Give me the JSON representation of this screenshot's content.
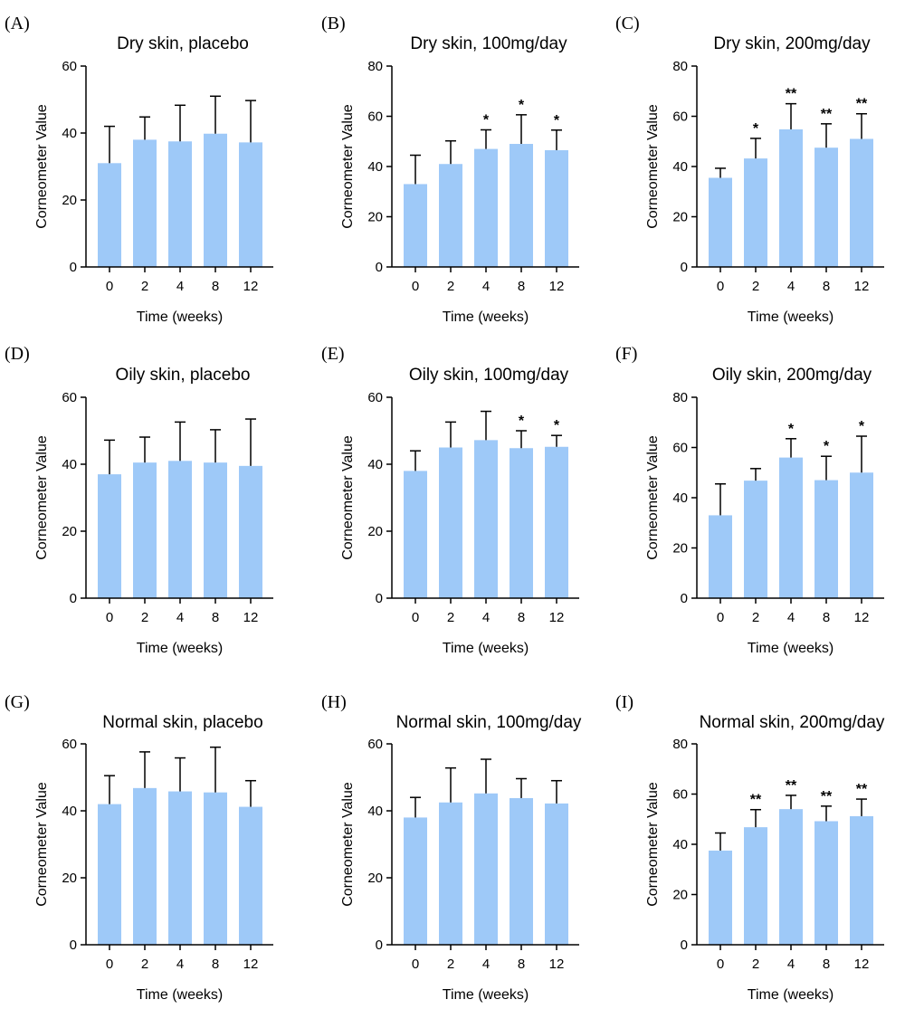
{
  "figure": {
    "bar_color": "#9ec9f8",
    "axis_color": "#000000"
  },
  "chart_data": [
    {
      "letter": "(A)",
      "type": "bar",
      "title": "Dry skin, placebo",
      "xlabel": "Time (weeks)",
      "ylabel": "Corneometer Value",
      "categories": [
        "0",
        "2",
        "4",
        "8",
        "12"
      ],
      "values": [
        31,
        38,
        37.5,
        39.8,
        37.2
      ],
      "errors": [
        11,
        6.8,
        10.8,
        11.2,
        12.5
      ],
      "significance": [
        "",
        "",
        "",
        "",
        ""
      ],
      "ylim": [
        0,
        60
      ],
      "yticks": [
        "0",
        "20",
        "40",
        "60"
      ]
    },
    {
      "letter": "(B)",
      "type": "bar",
      "title": "Dry skin, 100mg/day",
      "xlabel": "Time (weeks)",
      "ylabel": "Corneometer Value",
      "categories": [
        "0",
        "2",
        "4",
        "8",
        "12"
      ],
      "values": [
        33,
        41,
        47,
        49,
        46.5
      ],
      "errors": [
        11.5,
        9.2,
        7.6,
        11.6,
        8
      ],
      "significance": [
        "",
        "",
        "*",
        "*",
        "*"
      ],
      "ylim": [
        0,
        80
      ],
      "yticks": [
        "0",
        "20",
        "40",
        "60",
        "80"
      ]
    },
    {
      "letter": "(C)",
      "type": "bar",
      "title": "Dry skin, 200mg/day",
      "xlabel": "Time (weeks)",
      "ylabel": "Corneometer Value",
      "categories": [
        "0",
        "2",
        "4",
        "8",
        "12"
      ],
      "values": [
        35.5,
        43.2,
        54.8,
        47.5,
        51
      ],
      "errors": [
        3.8,
        8,
        10.2,
        9.5,
        10
      ],
      "significance": [
        "",
        "*",
        "**",
        "**",
        "**"
      ],
      "ylim": [
        0,
        80
      ],
      "yticks": [
        "0",
        "20",
        "40",
        "60",
        "80"
      ]
    },
    {
      "letter": "(D)",
      "type": "bar",
      "title": "Oily skin, placebo",
      "xlabel": "Time (weeks)",
      "ylabel": "Corneometer Value",
      "categories": [
        "0",
        "2",
        "4",
        "8",
        "12"
      ],
      "values": [
        37,
        40.5,
        41,
        40.5,
        39.5
      ],
      "errors": [
        10.2,
        7.6,
        11.6,
        9.8,
        14
      ],
      "significance": [
        "",
        "",
        "",
        "",
        ""
      ],
      "ylim": [
        0,
        60
      ],
      "yticks": [
        "0",
        "20",
        "40",
        "60"
      ]
    },
    {
      "letter": "(E)",
      "type": "bar",
      "title": "Oily skin, 100mg/day",
      "xlabel": "Time (weeks)",
      "ylabel": "Corneometer Value",
      "categories": [
        "0",
        "2",
        "4",
        "8",
        "12"
      ],
      "values": [
        38,
        45,
        47.2,
        44.8,
        45.2
      ],
      "errors": [
        6,
        7.6,
        8.6,
        5.2,
        3.4
      ],
      "significance": [
        "",
        "",
        "",
        "*",
        "*"
      ],
      "ylim": [
        0,
        60
      ],
      "yticks": [
        "0",
        "20",
        "40",
        "60"
      ]
    },
    {
      "letter": "(F)",
      "type": "bar",
      "title": "Oily skin, 200mg/day",
      "xlabel": "Time (weeks)",
      "ylabel": "Corneometer Value",
      "categories": [
        "0",
        "2",
        "4",
        "8",
        "12"
      ],
      "values": [
        33,
        46.8,
        56,
        47,
        50
      ],
      "errors": [
        12.5,
        4.8,
        7.5,
        9.5,
        14.5
      ],
      "significance": [
        "",
        "",
        "*",
        "*",
        "*"
      ],
      "ylim": [
        0,
        80
      ],
      "yticks": [
        "0",
        "20",
        "40",
        "60",
        "80"
      ]
    },
    {
      "letter": "(G)",
      "type": "bar",
      "title": "Normal  skin, placebo",
      "xlabel": "Time (weeks)",
      "ylabel": "Corneometer Value",
      "categories": [
        "0",
        "2",
        "4",
        "8",
        "12"
      ],
      "values": [
        42,
        46.8,
        45.8,
        45.5,
        41.2
      ],
      "errors": [
        8.5,
        10.8,
        10,
        13.5,
        7.8
      ],
      "significance": [
        "",
        "",
        "",
        "",
        ""
      ],
      "ylim": [
        0,
        60
      ],
      "yticks": [
        "0",
        "20",
        "40",
        "60"
      ]
    },
    {
      "letter": "(H)",
      "type": "bar",
      "title": "Normal skin, 100mg/day",
      "xlabel": "Time (weeks)",
      "ylabel": "Corneometer Value",
      "categories": [
        "0",
        "2",
        "4",
        "8",
        "12"
      ],
      "values": [
        38,
        42.5,
        45.2,
        43.8,
        42.2
      ],
      "errors": [
        6,
        10.3,
        10.2,
        5.8,
        6.8
      ],
      "significance": [
        "",
        "",
        "",
        "",
        ""
      ],
      "ylim": [
        0,
        60
      ],
      "yticks": [
        "0",
        "20",
        "40",
        "60"
      ]
    },
    {
      "letter": "(I)",
      "type": "bar",
      "title": "Normal skin, 200mg/day",
      "xlabel": "Time (weeks)",
      "ylabel": "Corneometer Value",
      "categories": [
        "0",
        "2",
        "4",
        "8",
        "12"
      ],
      "values": [
        37.5,
        46.8,
        54,
        49.2,
        51.2
      ],
      "errors": [
        7,
        7,
        5.5,
        6,
        6.8
      ],
      "significance": [
        "",
        "**",
        "**",
        "**",
        "**"
      ],
      "ylim": [
        0,
        80
      ],
      "yticks": [
        "0",
        "20",
        "40",
        "60",
        "80"
      ]
    }
  ]
}
